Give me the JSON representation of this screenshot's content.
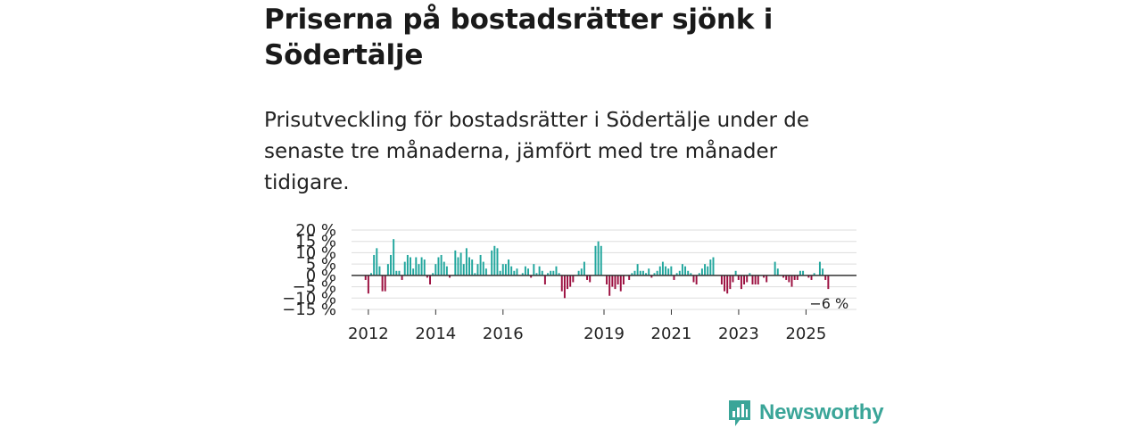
{
  "title": "Priserna på bostadsrätter sjönk i Södertälje",
  "subtitle": "Prisutveckling för bostadsrätter i Södertälje under de senaste tre månaderna, jämfört med tre månader tidigare.",
  "brand": {
    "name": "Newsworthy",
    "icon": "newsworthy-logo-icon",
    "color": "#3aa598"
  },
  "chart_data": {
    "type": "bar",
    "title": "",
    "xlabel": "",
    "ylabel": "",
    "ylim": [
      -15,
      20
    ],
    "xlim": [
      2011.5,
      2026.5
    ],
    "y_ticks": [
      20,
      15,
      10,
      5,
      0,
      -5,
      -10,
      -15
    ],
    "y_tick_labels": [
      "20 %",
      "15 %",
      "10 %",
      "5 %",
      "0 %",
      "−5 %",
      "−10 %",
      "−15 %"
    ],
    "x_ticks": [
      2012,
      2014,
      2016,
      2019,
      2021,
      2023,
      2025
    ],
    "x_tick_labels": [
      "2012",
      "2014",
      "2016",
      "2019",
      "2021",
      "2023",
      "2025"
    ],
    "grid": true,
    "colors": {
      "positive": "#21a69d",
      "negative": "#9c1040",
      "zero_line": "#333333",
      "grid": "#dddddd"
    },
    "series": [
      {
        "name": "Prisutveckling",
        "start": 2011.917,
        "step": 0.0833,
        "values": [
          -2,
          -8,
          1,
          9,
          12,
          4,
          -7,
          -7,
          5,
          9,
          16,
          2,
          2,
          -2,
          6,
          9,
          8,
          3,
          8,
          5,
          8,
          7,
          -1,
          -4,
          1,
          5,
          8,
          9,
          6,
          4,
          -1,
          0,
          11,
          8,
          10,
          5,
          12,
          8,
          7,
          1,
          5,
          9,
          6,
          3,
          0,
          11,
          13,
          12,
          2,
          5,
          5,
          7,
          4,
          2,
          3,
          0,
          1,
          4,
          3,
          -1,
          5,
          1,
          4,
          2,
          -4,
          1,
          2,
          2,
          4,
          1,
          -7,
          -10,
          -6,
          -5,
          -3,
          0,
          2,
          3,
          6,
          -2,
          -3,
          0,
          13,
          15,
          13,
          0,
          -4,
          -9,
          -5,
          -6,
          -4,
          -7,
          -4,
          0,
          -2,
          1,
          2,
          5,
          2,
          2,
          1,
          3,
          -1,
          1,
          2,
          4,
          6,
          4,
          3,
          4,
          -2,
          1,
          2,
          5,
          4,
          2,
          1,
          -3,
          -4,
          1,
          3,
          5,
          4,
          7,
          8,
          0,
          0,
          -4,
          -7,
          -8,
          -6,
          -3,
          2,
          -2,
          -6,
          -4,
          -3,
          1,
          -4,
          -4,
          -4,
          0,
          -1,
          -3,
          0,
          0,
          6,
          3,
          0,
          -1,
          -2,
          -3,
          -5,
          -2,
          -2,
          2,
          2,
          0,
          -1,
          -2,
          1,
          0,
          6,
          3,
          -2,
          -6
        ]
      }
    ],
    "annotation": {
      "label": "−6 %",
      "value": -6
    }
  }
}
